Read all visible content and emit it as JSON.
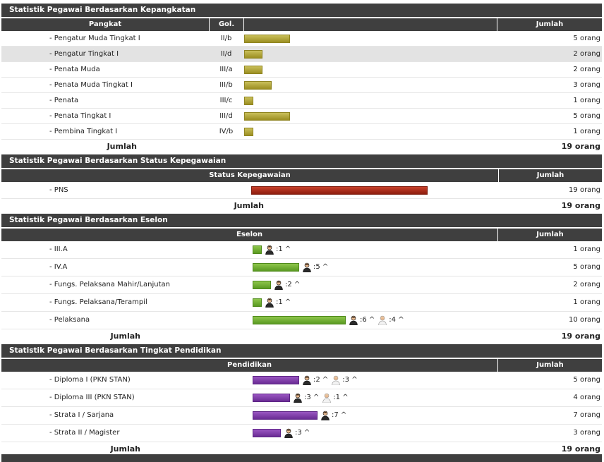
{
  "colors": {
    "header": "#3f3f3f",
    "gold": "#b3a53a",
    "red": "#b0301c",
    "green": "#74b036",
    "purple": "#7e3fa8"
  },
  "pangkat": {
    "title": "Statistik Pegawai Berdasarkan Kepangkatan",
    "col_pangkat": "Pangkat",
    "col_gol": "Gol.",
    "col_jumlah": "Jumlah",
    "rows": [
      {
        "label": "- Pengatur Muda Tingkat I",
        "gol": "II/b",
        "count": 5,
        "jumlah": "5 orang"
      },
      {
        "label": "- Pengatur Tingkat I",
        "gol": "II/d",
        "count": 2,
        "jumlah": "2 orang"
      },
      {
        "label": "- Penata Muda",
        "gol": "III/a",
        "count": 2,
        "jumlah": "2 orang"
      },
      {
        "label": "- Penata Muda Tingkat I",
        "gol": "III/b",
        "count": 3,
        "jumlah": "3 orang"
      },
      {
        "label": "- Penata",
        "gol": "III/c",
        "count": 1,
        "jumlah": "1 orang"
      },
      {
        "label": "- Penata Tingkat I",
        "gol": "III/d",
        "count": 5,
        "jumlah": "5 orang"
      },
      {
        "label": "- Pembina Tingkat I",
        "gol": "IV/b",
        "count": 1,
        "jumlah": "1 orang"
      }
    ],
    "total_label": "Jumlah",
    "total_value": "19 orang"
  },
  "status": {
    "title": "Statistik Pegawai Berdasarkan Status Kepegawaian",
    "col_status": "Status Kepegawaian",
    "col_jumlah": "Jumlah",
    "rows": [
      {
        "label": "- PNS",
        "count": 19,
        "jumlah": "19 orang"
      }
    ],
    "total_label": "Jumlah",
    "total_value": "19 orang"
  },
  "eselon": {
    "title": "Statistik Pegawai Berdasarkan Eselon",
    "col_eselon": "Eselon",
    "col_jumlah": "Jumlah",
    "rows": [
      {
        "label": "- III.A",
        "count": 1,
        "male": ":1 ^",
        "female": "",
        "jumlah": "1 orang"
      },
      {
        "label": "- IV.A",
        "count": 5,
        "male": ":5 ^",
        "female": "",
        "jumlah": "5 orang"
      },
      {
        "label": "- Fungs. Pelaksana Mahir/Lanjutan",
        "count": 2,
        "male": ":2 ^",
        "female": "",
        "jumlah": "2 orang"
      },
      {
        "label": "- Fungs. Pelaksana/Terampil",
        "count": 1,
        "male": ":1 ^",
        "female": "",
        "jumlah": "1 orang"
      },
      {
        "label": "- Pelaksana",
        "count": 10,
        "male": ":6 ^",
        "female": ":4 ^",
        "jumlah": "10 orang"
      }
    ],
    "total_label": "Jumlah",
    "total_value": "19 orang"
  },
  "pendidikan": {
    "title": "Statistik Pegawai Berdasarkan Tingkat Pendidikan",
    "col_pendidikan": "Pendidikan",
    "col_jumlah": "Jumlah",
    "rows": [
      {
        "label": "- Diploma I (PKN STAN)",
        "count": 5,
        "male": ":2 ^",
        "female": ":3 ^",
        "jumlah": "5 orang"
      },
      {
        "label": "- Diploma III (PKN STAN)",
        "count": 4,
        "male": ":3 ^",
        "female": ":1 ^",
        "jumlah": "4 orang"
      },
      {
        "label": "- Strata I / Sarjana",
        "count": 7,
        "male": ":7 ^",
        "female": "",
        "jumlah": "7 orang"
      },
      {
        "label": "- Strata II / Magister",
        "count": 3,
        "male": ":3 ^",
        "female": "",
        "jumlah": "3 orang"
      }
    ],
    "total_label": "Jumlah",
    "total_value": "19 orang"
  }
}
